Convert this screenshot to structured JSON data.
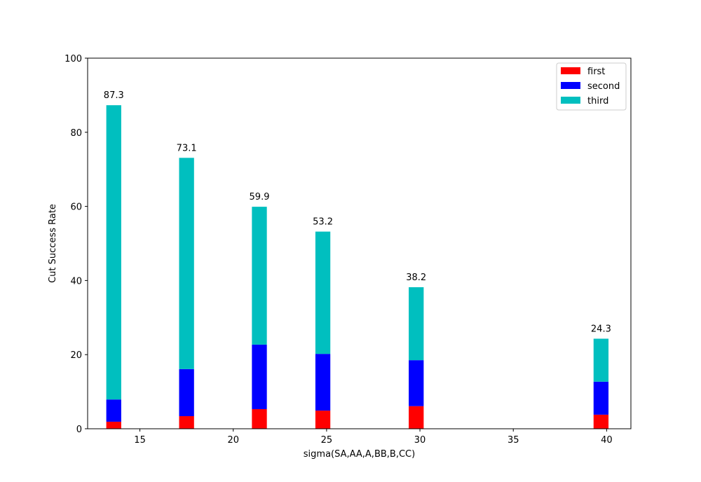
{
  "chart_data": {
    "type": "bar",
    "stacked": true,
    "xlabel": "sigma(SA,AA,A,BB,B,CC)",
    "ylabel": "Cut Success Rate",
    "xlim": [
      12.2,
      41.3
    ],
    "ylim": [
      0,
      100
    ],
    "xticks": [
      15,
      20,
      25,
      30,
      35,
      40
    ],
    "yticks": [
      0,
      20,
      40,
      60,
      80,
      100
    ],
    "bar_width": 0.8,
    "x": [
      13.6,
      17.5,
      21.4,
      24.8,
      29.8,
      39.7
    ],
    "series": [
      {
        "name": "first",
        "color": "#ff0000",
        "values": [
          1.9,
          3.4,
          5.3,
          4.9,
          6.1,
          3.8
        ]
      },
      {
        "name": "second",
        "color": "#0000ff",
        "values": [
          6.0,
          12.7,
          17.4,
          15.3,
          12.4,
          8.9
        ]
      },
      {
        "name": "third",
        "color": "#00bfbf",
        "values": [
          79.4,
          57.0,
          37.2,
          33.0,
          19.7,
          11.6
        ]
      }
    ],
    "totals": [
      "87.3",
      "73.1",
      "59.9",
      "53.2",
      "38.2",
      "24.3"
    ],
    "legend": "top-right",
    "grid": false
  }
}
